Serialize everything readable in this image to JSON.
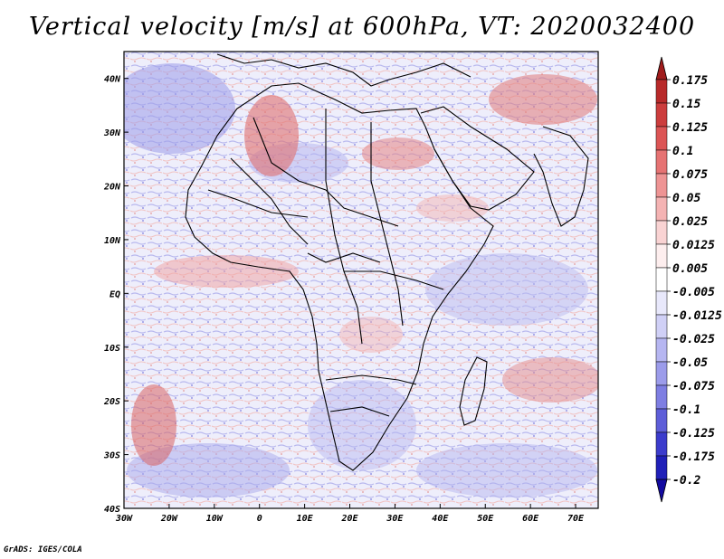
{
  "title": "Vertical velocity [m/s] at 600hPa, VT: 2020032400",
  "credit": "GrADS: IGES/COLA",
  "map": {
    "region": "Africa",
    "lat_ticks": [
      {
        "label": "40N",
        "value": 40
      },
      {
        "label": "30N",
        "value": 30
      },
      {
        "label": "20N",
        "value": 20
      },
      {
        "label": "10N",
        "value": 10
      },
      {
        "label": "EQ",
        "value": 0
      },
      {
        "label": "10S",
        "value": -10
      },
      {
        "label": "20S",
        "value": -20
      },
      {
        "label": "30S",
        "value": -30
      },
      {
        "label": "40S",
        "value": -40
      }
    ],
    "lon_ticks": [
      {
        "label": "30W",
        "value": -30
      },
      {
        "label": "20W",
        "value": -20
      },
      {
        "label": "10W",
        "value": -10
      },
      {
        "label": "0",
        "value": 0
      },
      {
        "label": "10E",
        "value": 10
      },
      {
        "label": "20E",
        "value": 20
      },
      {
        "label": "30E",
        "value": 30
      },
      {
        "label": "40E",
        "value": 40
      },
      {
        "label": "50E",
        "value": 50
      },
      {
        "label": "60E",
        "value": 60
      },
      {
        "label": "70E",
        "value": 70
      }
    ],
    "lon_range": [
      -30,
      75
    ],
    "lat_range": [
      -40,
      45
    ]
  },
  "colorbar": {
    "labels": [
      "0.175",
      "0.15",
      "0.125",
      "0.1",
      "0.075",
      "0.05",
      "0.025",
      "0.0125",
      "0.005",
      "-0.005",
      "-0.0125",
      "-0.025",
      "-0.05",
      "-0.075",
      "-0.1",
      "-0.125",
      "-0.175",
      "-0.2"
    ],
    "colors": [
      "#a01c1c",
      "#b82a2a",
      "#cc3d3d",
      "#dc5555",
      "#e67373",
      "#ee9494",
      "#f4b3b3",
      "#f9d3d3",
      "#fdeeee",
      "#ffffff",
      "#e8e8fb",
      "#d0d0f6",
      "#b6b6f1",
      "#9c9cea",
      "#7e7ee2",
      "#5e5ed8",
      "#3c3ccc",
      "#2020b8",
      "#120aa0"
    ]
  }
}
